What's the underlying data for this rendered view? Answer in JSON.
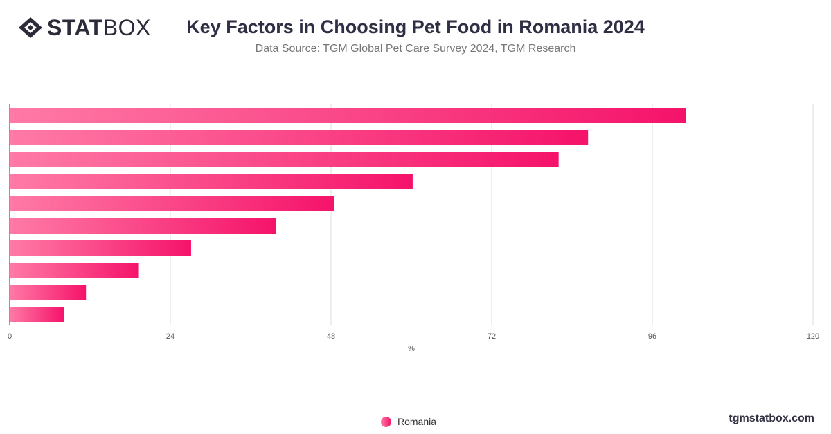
{
  "logo": {
    "bold": "STAT",
    "light": "BOX",
    "icon": "diamond-logo-icon"
  },
  "header": {
    "title": "Key Factors in Choosing Pet Food in Romania 2024",
    "subtitle": "Data Source: TGM Global Pet Care Survey 2024, TGM Research"
  },
  "footer": {
    "site": "tgmstatbox.com"
  },
  "colors": {
    "bar_start": "#ff7aa6",
    "bar_end": "#f5136a",
    "grid": "#dddddd",
    "axis": "#333333"
  },
  "chart_data": {
    "type": "bar",
    "orientation": "horizontal",
    "categories": [
      "",
      "",
      "",
      "",
      "",
      "",
      "",
      "",
      "",
      ""
    ],
    "series": [
      {
        "name": "Romania",
        "values": [
          101,
          86.4,
          82,
          60.2,
          48.5,
          39.8,
          27.1,
          19.3,
          11.4,
          8.1
        ]
      }
    ],
    "xlabel": "%",
    "ylabel": "",
    "xlim": [
      0,
      120
    ],
    "xticks": [
      0,
      24,
      48,
      72,
      96,
      120
    ],
    "grid": "vertical",
    "legend": "bottom-center"
  }
}
